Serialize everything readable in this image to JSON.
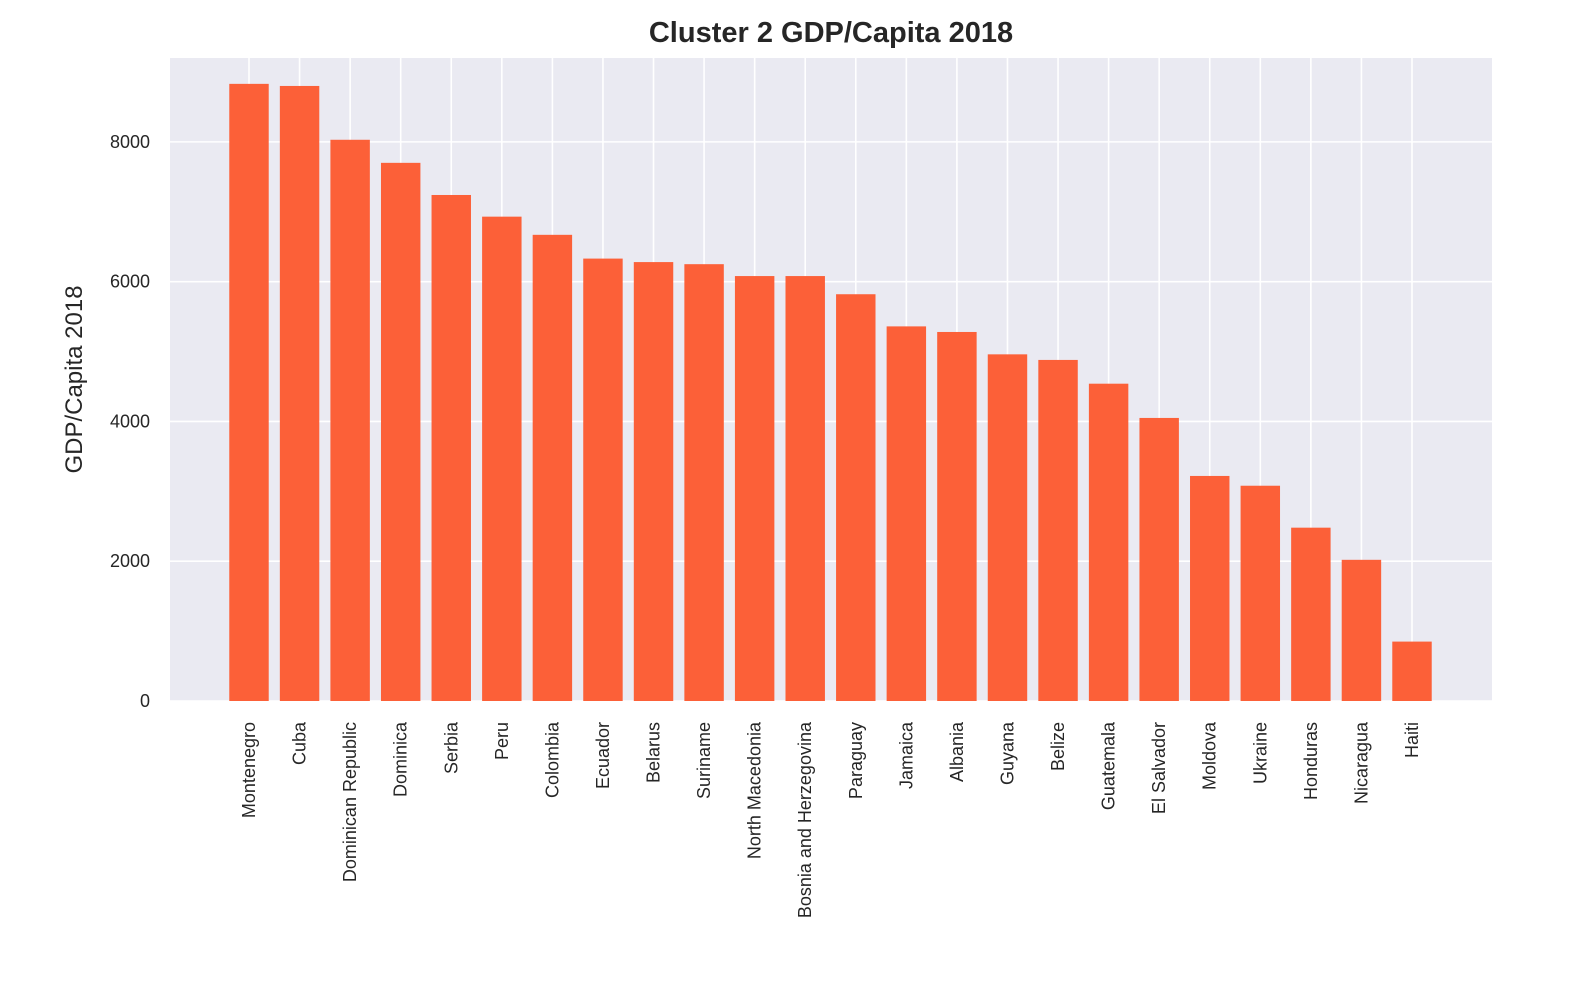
{
  "chart_data": {
    "type": "bar",
    "title": "Cluster 2 GDP/Capita 2018",
    "xlabel": "",
    "ylabel": "GDP/Capita 2018",
    "ylim": [
      0,
      9200
    ],
    "yticks": [
      0,
      2000,
      4000,
      6000,
      8000
    ],
    "ytick_labels": [
      "0",
      "2000",
      "4000",
      "6000",
      "8000"
    ],
    "grid": true,
    "bar_color": "#fc6038",
    "background_color": "#eaeaf2",
    "categories": [
      "Montenegro",
      "Cuba",
      "Dominican Republic",
      "Dominica",
      "Serbia",
      "Peru",
      "Colombia",
      "Ecuador",
      "Belarus",
      "Suriname",
      "North Macedonia",
      "Bosnia and Herzegovina",
      "Paraguay",
      "Jamaica",
      "Albania",
      "Guyana",
      "Belize",
      "Guatemala",
      "El Salvador",
      "Moldova",
      "Ukraine",
      "Honduras",
      "Nicaragua",
      "Haiti"
    ],
    "values": [
      8830,
      8800,
      8030,
      7700,
      7240,
      6930,
      6670,
      6330,
      6280,
      6250,
      6080,
      6080,
      5820,
      5360,
      5280,
      4960,
      4880,
      4540,
      4050,
      3220,
      3080,
      2480,
      2020,
      850
    ]
  }
}
